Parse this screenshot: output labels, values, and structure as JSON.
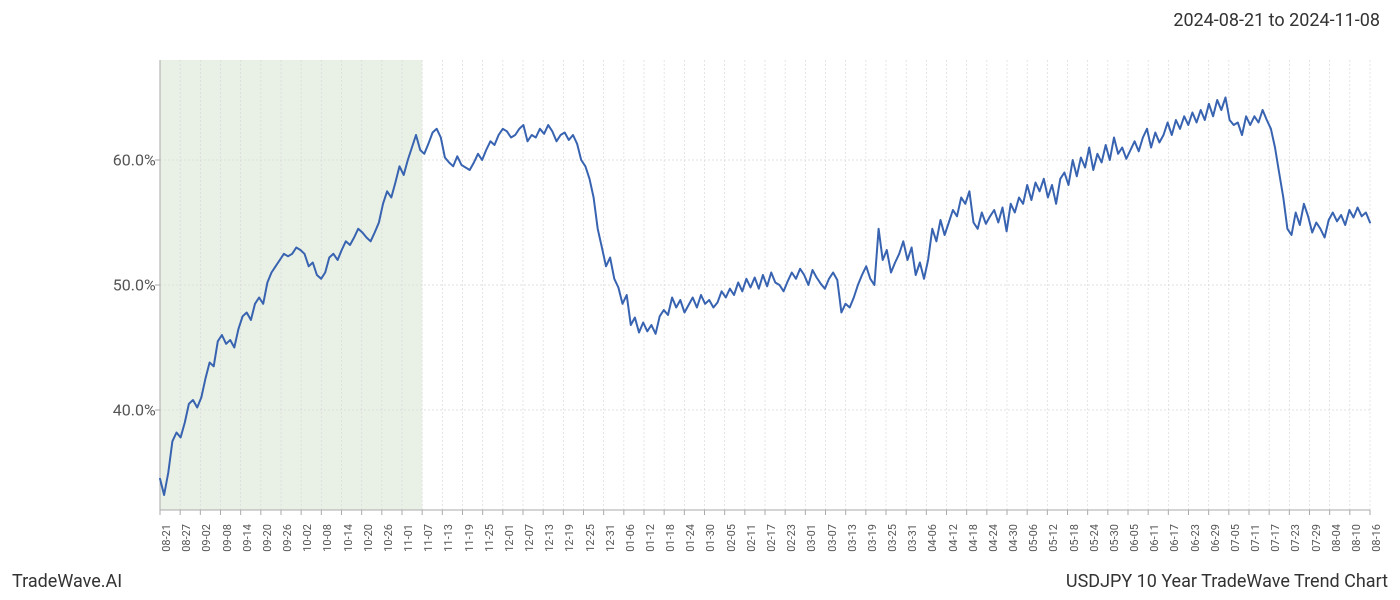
{
  "date_range_label": "2024-08-21 to 2024-11-08",
  "footer_left": "TradeWave.AI",
  "footer_right": "USDJPY 10 Year TradeWave Trend Chart",
  "chart": {
    "type": "line",
    "line_color": "#3863b0",
    "line_width": 2,
    "background_color": "#ffffff",
    "plot_border_color": "#aaaaaa",
    "grid_color": "#d9d9d9",
    "highlight_region": {
      "fill_color": "#dfeadb",
      "opacity": 0.7,
      "start_index": 0,
      "end_index": 13
    },
    "ylim": [
      32,
      68
    ],
    "yticks": [
      40,
      50,
      60
    ],
    "ytick_labels": [
      "40.0%",
      "50.0%",
      "60.0%"
    ],
    "ytick_fontsize": 16,
    "xtick_fontsize": 11,
    "xtick_rotation": -90,
    "x_labels": [
      "08-21",
      "08-27",
      "09-02",
      "09-08",
      "09-14",
      "09-20",
      "09-26",
      "10-02",
      "10-08",
      "10-14",
      "10-20",
      "10-26",
      "11-01",
      "11-07",
      "11-13",
      "11-19",
      "11-25",
      "12-01",
      "12-07",
      "12-13",
      "12-19",
      "12-25",
      "12-31",
      "01-06",
      "01-12",
      "01-18",
      "01-24",
      "01-30",
      "02-05",
      "02-11",
      "02-17",
      "02-23",
      "03-01",
      "03-07",
      "03-13",
      "03-19",
      "03-25",
      "03-31",
      "04-06",
      "04-12",
      "04-18",
      "04-24",
      "04-30",
      "05-06",
      "05-12",
      "05-18",
      "05-24",
      "05-30",
      "06-05",
      "06-11",
      "06-17",
      "06-23",
      "06-29",
      "07-05",
      "07-11",
      "07-17",
      "07-23",
      "07-29",
      "08-04",
      "08-10",
      "08-16"
    ],
    "values": [
      34.5,
      33.2,
      35.0,
      37.5,
      38.2,
      37.8,
      39.0,
      40.5,
      40.8,
      40.2,
      41.0,
      42.5,
      43.8,
      43.5,
      45.5,
      46.0,
      45.3,
      45.6,
      45.0,
      46.5,
      47.5,
      47.8,
      47.2,
      48.5,
      49.0,
      48.5,
      50.2,
      51.0,
      51.5,
      52.0,
      52.5,
      52.3,
      52.5,
      53.0,
      52.8,
      52.5,
      51.5,
      51.8,
      50.8,
      50.5,
      51.0,
      52.2,
      52.5,
      52.0,
      52.8,
      53.5,
      53.2,
      53.8,
      54.5,
      54.2,
      53.8,
      53.5,
      54.2,
      55.0,
      56.5,
      57.5,
      57.0,
      58.2,
      59.5,
      58.8,
      60.0,
      61.0,
      62.0,
      60.8,
      60.5,
      61.3,
      62.2,
      62.5,
      61.8,
      60.2,
      59.8,
      59.5,
      60.3,
      59.6,
      59.4,
      59.2,
      59.8,
      60.5,
      60.0,
      60.8,
      61.5,
      61.2,
      62.0,
      62.5,
      62.3,
      61.8,
      62.0,
      62.5,
      62.8,
      61.5,
      62.0,
      61.8,
      62.5,
      62.1,
      62.8,
      62.3,
      61.5,
      62.0,
      62.2,
      61.6,
      62.0,
      61.3,
      60.0,
      59.5,
      58.5,
      57.0,
      54.5,
      53.0,
      51.5,
      52.2,
      50.5,
      49.8,
      48.5,
      49.2,
      46.8,
      47.4,
      46.2,
      47.0,
      46.3,
      46.8,
      46.1,
      47.5,
      48.0,
      47.6,
      49.0,
      48.2,
      48.8,
      47.8,
      48.4,
      49.0,
      48.2,
      49.2,
      48.5,
      48.8,
      48.2,
      48.6,
      49.5,
      49.0,
      49.7,
      49.2,
      50.2,
      49.5,
      50.5,
      49.8,
      50.6,
      49.7,
      50.8,
      49.9,
      51.0,
      50.2,
      50.0,
      49.5,
      50.3,
      51.0,
      50.5,
      51.3,
      50.8,
      50.0,
      51.2,
      50.6,
      50.1,
      49.7,
      50.5,
      51.0,
      50.4,
      47.8,
      48.5,
      48.2,
      49.0,
      50.0,
      50.8,
      51.5,
      50.5,
      50.0,
      54.5,
      52.0,
      52.8,
      51.0,
      51.8,
      52.5,
      53.5,
      52.0,
      53.0,
      50.8,
      51.8,
      50.5,
      52.0,
      54.5,
      53.5,
      55.2,
      54.0,
      55.0,
      56.0,
      55.5,
      57.0,
      56.5,
      57.5,
      55.0,
      54.5,
      55.8,
      54.9,
      55.5,
      56.0,
      55.0,
      56.2,
      54.3,
      56.5,
      55.8,
      57.0,
      56.5,
      58.0,
      56.8,
      58.2,
      57.5,
      58.5,
      57.0,
      58.0,
      56.5,
      58.5,
      59.0,
      58.0,
      60.0,
      58.7,
      60.2,
      59.4,
      61.0,
      59.2,
      60.5,
      59.8,
      61.2,
      60.0,
      61.8,
      60.5,
      61.0,
      60.1,
      60.8,
      61.5,
      60.7,
      61.8,
      62.5,
      61.0,
      62.2,
      61.4,
      62.0,
      63.0,
      62.0,
      63.2,
      62.5,
      63.5,
      62.8,
      63.8,
      63.0,
      64.0,
      63.2,
      64.5,
      63.5,
      64.8,
      64.0,
      65.0,
      63.2,
      62.8,
      63.0,
      62.0,
      63.5,
      62.8,
      63.5,
      63.0,
      64.0,
      63.2,
      62.5,
      61.0,
      59.0,
      57.0,
      54.5,
      54.0,
      55.8,
      54.8,
      56.5,
      55.5,
      54.2,
      55.0,
      54.5,
      53.8,
      55.2,
      55.8,
      55.1,
      55.6,
      54.8,
      56.0,
      55.4,
      56.2,
      55.5,
      55.8,
      55.0
    ]
  }
}
